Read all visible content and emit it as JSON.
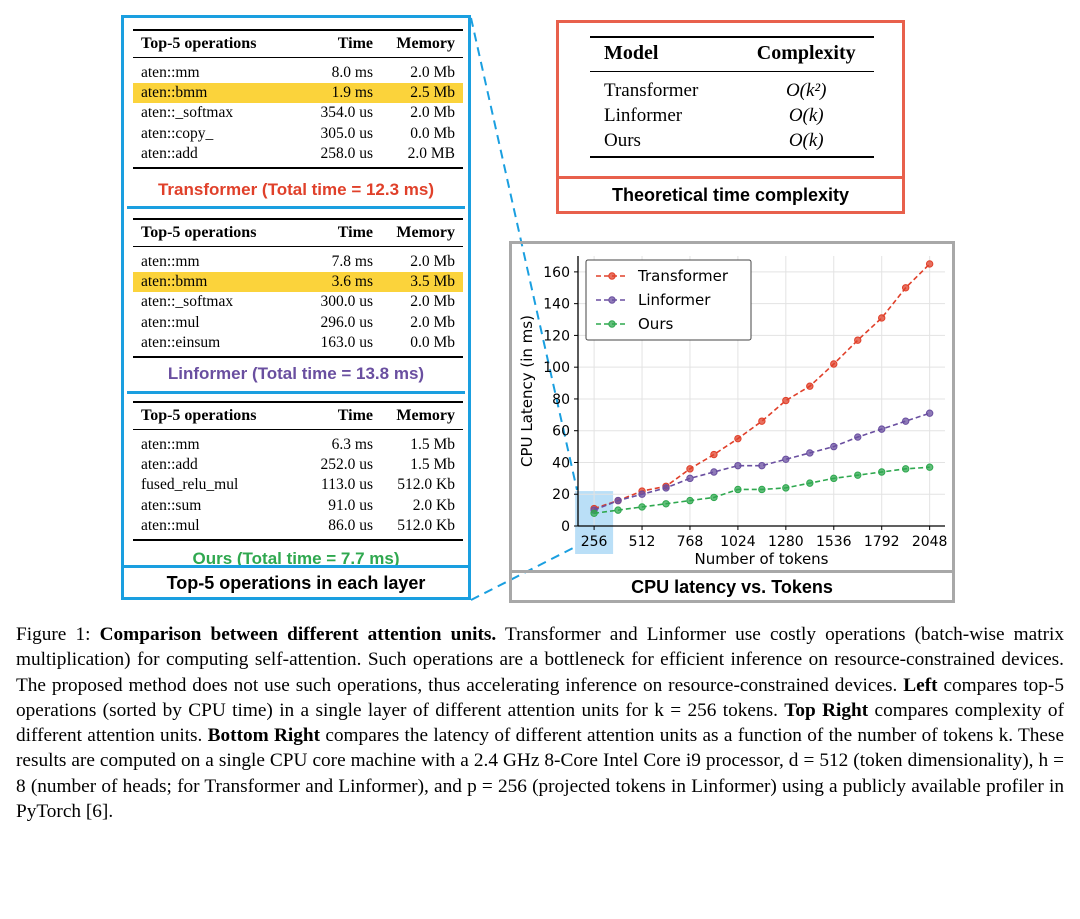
{
  "left": {
    "header": {
      "op": "Top-5 operations",
      "time": "Time",
      "memory": "Memory"
    },
    "transformer": {
      "rows": [
        {
          "op": "aten::mm",
          "time": "8.0 ms",
          "memory": "2.0 Mb"
        },
        {
          "op": "aten::bmm",
          "time": "1.9 ms",
          "memory": "2.5 Mb",
          "highlight": true
        },
        {
          "op": "aten::_softmax",
          "time": "354.0 us",
          "memory": "2.0 Mb"
        },
        {
          "op": "aten::copy_",
          "time": "305.0 us",
          "memory": "0.0 Mb"
        },
        {
          "op": "aten::add",
          "time": "258.0 us",
          "memory": "2.0 MB"
        }
      ],
      "total": "Transformer (Total time = 12.3 ms)",
      "color": "#e0402a"
    },
    "linformer": {
      "rows": [
        {
          "op": "aten::mm",
          "time": "7.8 ms",
          "memory": "2.0 Mb"
        },
        {
          "op": "aten::bmm",
          "time": "3.6 ms",
          "memory": "3.5 Mb",
          "highlight": true
        },
        {
          "op": "aten::_softmax",
          "time": "300.0 us",
          "memory": "2.0 Mb"
        },
        {
          "op": "aten::mul",
          "time": "296.0 us",
          "memory": "2.0 Mb"
        },
        {
          "op": "aten::einsum",
          "time": "163.0 us",
          "memory": "0.0 Mb"
        }
      ],
      "total": "Linformer (Total time = 13.8 ms)",
      "color": "#6a4fa0"
    },
    "ours": {
      "rows": [
        {
          "op": "aten::mm",
          "time": "6.3 ms",
          "memory": "1.5 Mb"
        },
        {
          "op": "aten::add",
          "time": "252.0 us",
          "memory": "1.5 Mb"
        },
        {
          "op": "fused_relu_mul",
          "time": "113.0 us",
          "memory": "512.0 Kb"
        },
        {
          "op": "aten::sum",
          "time": "91.0 us",
          "memory": "2.0 Kb"
        },
        {
          "op": "aten::mul",
          "time": "86.0 us",
          "memory": "512.0 Kb"
        }
      ],
      "total": "Ours (Total time = 7.7 ms)",
      "color": "#2fa84f"
    },
    "caption": "Top-5 operations in each layer",
    "border_color": "#1a9fe0"
  },
  "complexity": {
    "header": {
      "model": "Model",
      "complexity": "Complexity"
    },
    "rows": [
      {
        "model": "Transformer",
        "complexity": "O(k²)"
      },
      {
        "model": "Linformer",
        "complexity": "O(k)"
      },
      {
        "model": "Ours",
        "complexity": "O(k)"
      }
    ],
    "caption": "Theoretical time complexity",
    "border_color": "#e8604c"
  },
  "latency": {
    "caption": "CPU latency vs. Tokens",
    "border_color": "#a8a8a8",
    "highlight_color": "#a9d7f5"
  },
  "chart_data": {
    "type": "line",
    "title": "",
    "xlabel": "Number of tokens",
    "ylabel": "CPU Latency (in ms)",
    "x": [
      256,
      384,
      512,
      640,
      768,
      896,
      1024,
      1152,
      1280,
      1408,
      1536,
      1664,
      1792,
      1920,
      2048
    ],
    "xticks": [
      "256",
      "512",
      "768",
      "1024",
      "1280",
      "1536",
      "1792",
      "2048"
    ],
    "yticks": [
      "0",
      "20",
      "40",
      "60",
      "80",
      "100",
      "120",
      "140",
      "160"
    ],
    "xlim": [
      170,
      2130
    ],
    "ylim": [
      0,
      170
    ],
    "grid": true,
    "legend_position": "top-left",
    "series": [
      {
        "name": "Transformer",
        "color": "#e0402a",
        "values": [
          11,
          16,
          22,
          25,
          36,
          45,
          55,
          66,
          79,
          88,
          102,
          117,
          131,
          150,
          165
        ]
      },
      {
        "name": "Linformer",
        "color": "#6a4fa0",
        "values": [
          10,
          16,
          20,
          24,
          30,
          34,
          38,
          38,
          42,
          46,
          50,
          56,
          61,
          66,
          71
        ]
      },
      {
        "name": "Ours",
        "color": "#2fa84f",
        "values": [
          8,
          10,
          12,
          14,
          16,
          18,
          23,
          23,
          24,
          27,
          30,
          32,
          34,
          36,
          37
        ]
      }
    ]
  },
  "caption": {
    "fig_label": "Figure 1: ",
    "bold_title": "Comparison between different attention units.",
    "text1": " Transformer and Linformer use costly operations (batch-wise matrix multiplication) for computing self-attention. Such operations are a bottleneck for efficient inference on resource-constrained devices. The proposed method does not use such operations, thus accelerating inference on resource-constrained devices. ",
    "left_label": "Left",
    "text2": " compares top-5 operations (sorted by CPU time) in a single layer of different attention units for k = 256 tokens. ",
    "top_right_label": "Top Right",
    "text3": " compares complexity of different attention units. ",
    "bottom_right_label": "Bottom Right",
    "text4": " compares the latency of different attention units as a function of the number of tokens k. These results are computed on a single CPU core machine with a 2.4 GHz 8-Core Intel Core i9 processor, d = 512 (token dimensionality), h = 8 (number of heads; for Transformer and Linformer), and p = 256 (projected tokens in Linformer) using a publicly available profiler in PyTorch [6]."
  }
}
